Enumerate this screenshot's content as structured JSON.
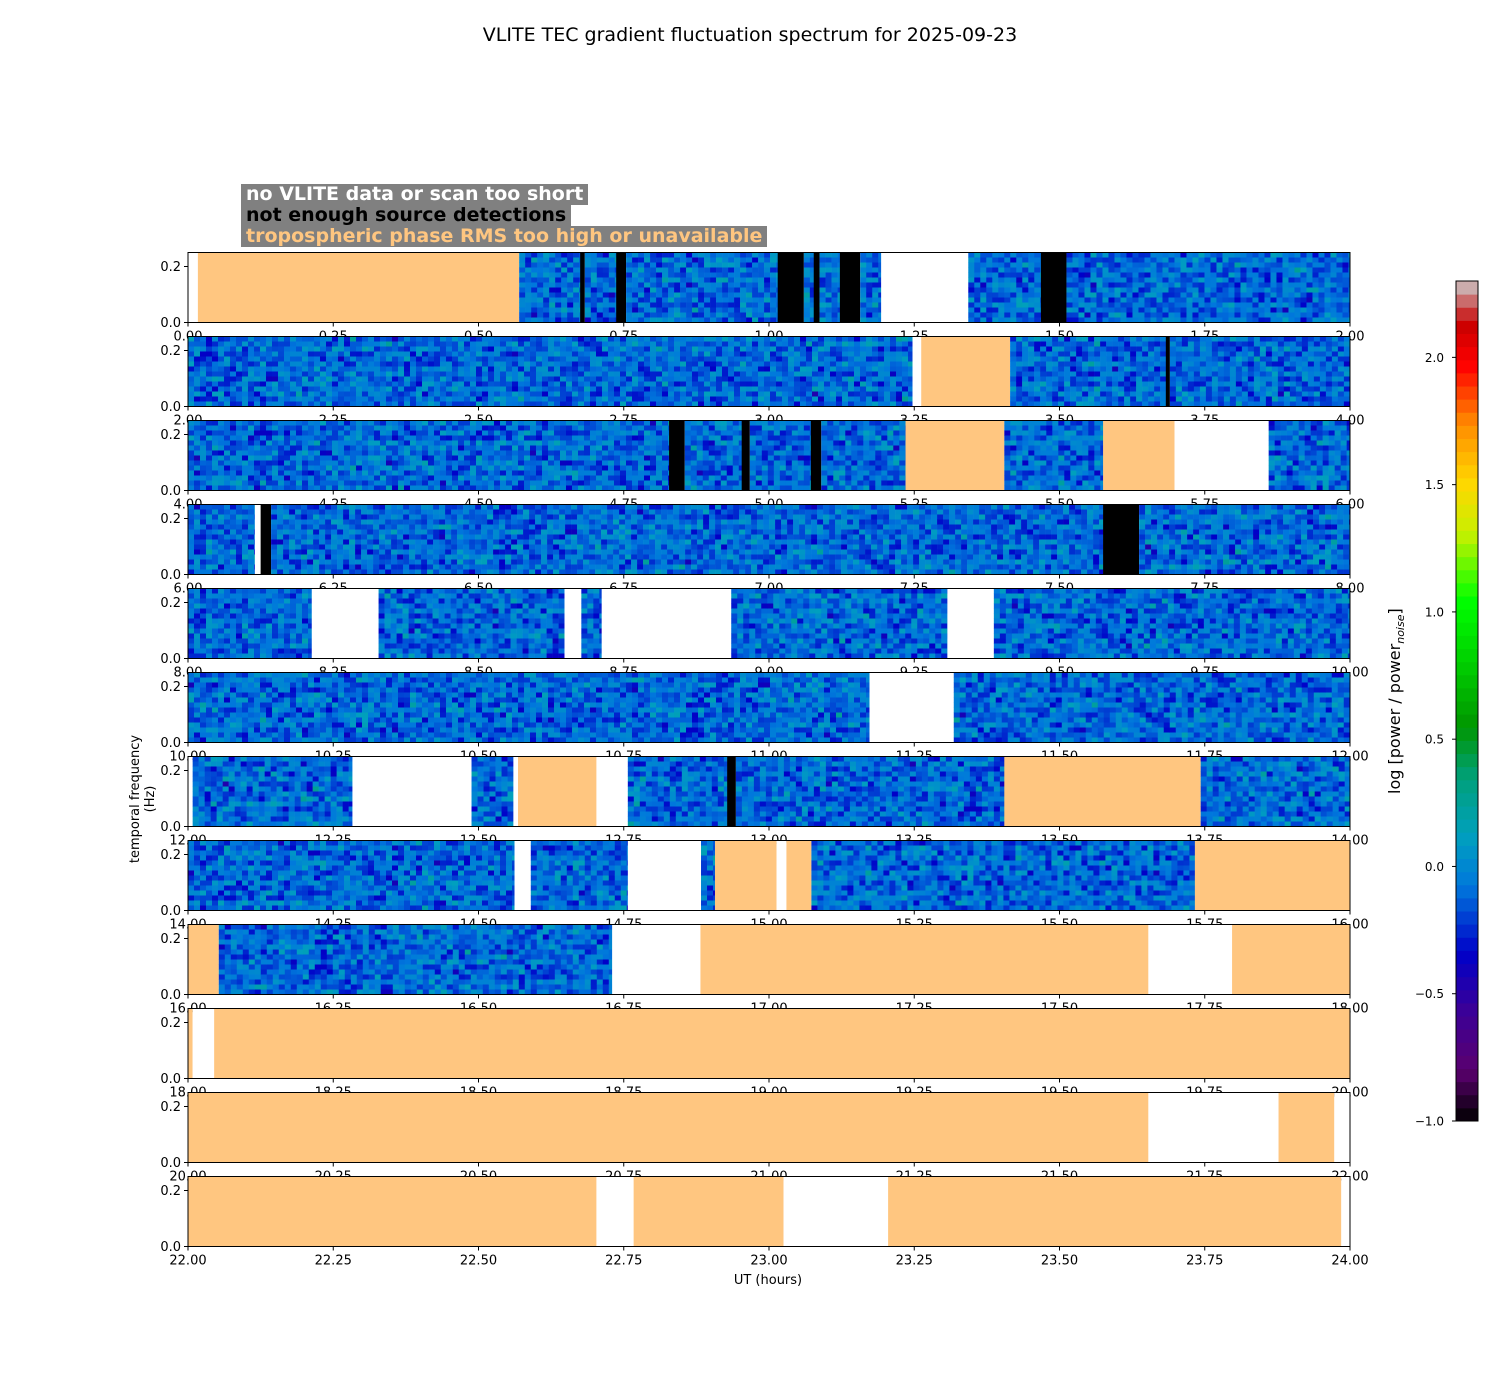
{
  "title": "VLITE TEC gradient fluctuation spectrum for 2025-09-23",
  "legend": {
    "no_data": "no VLITE data or scan too short",
    "not_enough": "not enough source detections",
    "tropo": "tropospheric phase RMS too high or unavailable"
  },
  "colors": {
    "tropo_fill": "#ffc680",
    "no_data_fill": "#ffffff",
    "not_enough_fill": "#000000",
    "legend_bg": "#808080"
  },
  "chart_data": {
    "type": "heatmap",
    "xlabel": "UT (hours)",
    "ylabel": "temporal frequency (Hz)",
    "colorbar_label": "log [power / power_noise]",
    "colorbar_ticks": [
      "−1.0",
      "−0.5",
      "0.0",
      "0.5",
      "1.0",
      "1.5",
      "2.0"
    ],
    "colorbar_range": [
      -1.0,
      2.3
    ],
    "ylim": [
      0.0,
      0.25
    ],
    "yticks": [
      "0.0",
      "0.2"
    ],
    "panels": [
      {
        "xlim": [
          0,
          2
        ],
        "xticks": [
          "0.00",
          "0.25",
          "0.50",
          "0.75",
          "1.00",
          "1.25",
          "1.50",
          "1.75",
          "2.00"
        ],
        "segments": [
          {
            "t": "n",
            "s": 0.0,
            "e": 0.017
          },
          {
            "t": "r",
            "s": 0.017,
            "e": 0.57
          },
          {
            "t": "s",
            "s": 0.57,
            "e": 0.675
          },
          {
            "t": "k",
            "s": 0.675,
            "e": 0.683
          },
          {
            "t": "s",
            "s": 0.683,
            "e": 0.737
          },
          {
            "t": "k",
            "s": 0.737,
            "e": 0.754
          },
          {
            "t": "s",
            "s": 0.754,
            "e": 1.015
          },
          {
            "t": "k",
            "s": 1.015,
            "e": 1.06
          },
          {
            "t": "s",
            "s": 1.06,
            "e": 1.077
          },
          {
            "t": "k",
            "s": 1.077,
            "e": 1.087
          },
          {
            "t": "s",
            "s": 1.087,
            "e": 1.122
          },
          {
            "t": "k",
            "s": 1.122,
            "e": 1.157
          },
          {
            "t": "s",
            "s": 1.157,
            "e": 1.193
          },
          {
            "t": "n",
            "s": 1.193,
            "e": 1.343
          },
          {
            "t": "s",
            "s": 1.343,
            "e": 1.468
          },
          {
            "t": "k",
            "s": 1.468,
            "e": 1.512
          },
          {
            "t": "s",
            "s": 1.512,
            "e": 2.0
          }
        ]
      },
      {
        "xlim": [
          2,
          4
        ],
        "xticks": [
          "2.00",
          "2.25",
          "2.50",
          "2.75",
          "3.00",
          "3.25",
          "3.50",
          "3.75",
          "4.00"
        ],
        "segments": [
          {
            "t": "s",
            "s": 2.0,
            "e": 3.247
          },
          {
            "t": "n",
            "s": 3.247,
            "e": 3.262
          },
          {
            "t": "r",
            "s": 3.262,
            "e": 3.415
          },
          {
            "t": "s",
            "s": 3.415,
            "e": 3.683
          },
          {
            "t": "k",
            "s": 3.683,
            "e": 3.69
          },
          {
            "t": "s",
            "s": 3.69,
            "e": 4.0
          }
        ]
      },
      {
        "xlim": [
          4,
          6
        ],
        "xticks": [
          "4.00",
          "4.25",
          "4.50",
          "4.75",
          "5.00",
          "5.25",
          "5.50",
          "5.75",
          "6.00"
        ],
        "segments": [
          {
            "t": "s",
            "s": 4.0,
            "e": 4.828
          },
          {
            "t": "k",
            "s": 4.828,
            "e": 4.855
          },
          {
            "t": "s",
            "s": 4.855,
            "e": 4.953
          },
          {
            "t": "k",
            "s": 4.953,
            "e": 4.967
          },
          {
            "t": "s",
            "s": 4.967,
            "e": 5.072
          },
          {
            "t": "k",
            "s": 5.072,
            "e": 5.09
          },
          {
            "t": "s",
            "s": 5.09,
            "e": 5.235
          },
          {
            "t": "r",
            "s": 5.235,
            "e": 5.405
          },
          {
            "t": "s",
            "s": 5.405,
            "e": 5.575
          },
          {
            "t": "r",
            "s": 5.575,
            "e": 5.698
          },
          {
            "t": "n",
            "s": 5.698,
            "e": 5.86
          },
          {
            "t": "s",
            "s": 5.86,
            "e": 6.0
          }
        ]
      },
      {
        "xlim": [
          6,
          8
        ],
        "xticks": [
          "6.00",
          "6.25",
          "6.50",
          "6.75",
          "7.00",
          "7.25",
          "7.50",
          "7.75",
          "8.00"
        ],
        "segments": [
          {
            "t": "s",
            "s": 6.0,
            "e": 6.115
          },
          {
            "t": "n",
            "s": 6.115,
            "e": 6.125
          },
          {
            "t": "k",
            "s": 6.125,
            "e": 6.143
          },
          {
            "t": "s",
            "s": 6.143,
            "e": 7.575
          },
          {
            "t": "k",
            "s": 7.575,
            "e": 7.637
          },
          {
            "t": "s",
            "s": 7.637,
            "e": 8.0
          }
        ]
      },
      {
        "xlim": [
          8,
          10
        ],
        "xticks": [
          "8.00",
          "8.25",
          "8.50",
          "8.75",
          "9.00",
          "9.25",
          "9.50",
          "9.75",
          "10.00"
        ],
        "segments": [
          {
            "t": "s",
            "s": 8.0,
            "e": 8.213
          },
          {
            "t": "n",
            "s": 8.213,
            "e": 8.328
          },
          {
            "t": "s",
            "s": 8.328,
            "e": 8.648
          },
          {
            "t": "n",
            "s": 8.648,
            "e": 8.677
          },
          {
            "t": "s",
            "s": 8.677,
            "e": 8.712
          },
          {
            "t": "n",
            "s": 8.712,
            "e": 8.935
          },
          {
            "t": "s",
            "s": 8.935,
            "e": 9.307
          },
          {
            "t": "n",
            "s": 9.307,
            "e": 9.387
          },
          {
            "t": "s",
            "s": 9.387,
            "e": 10.0
          }
        ]
      },
      {
        "xlim": [
          10,
          12
        ],
        "xticks": [
          "10.00",
          "10.25",
          "10.50",
          "10.75",
          "11.00",
          "11.25",
          "11.50",
          "11.75",
          "12.00"
        ],
        "segments": [
          {
            "t": "s",
            "s": 10.0,
            "e": 11.173
          },
          {
            "t": "n",
            "s": 11.173,
            "e": 11.318
          },
          {
            "t": "s",
            "s": 11.318,
            "e": 12.0
          }
        ]
      },
      {
        "xlim": [
          12,
          14
        ],
        "xticks": [
          "12.00",
          "12.25",
          "12.50",
          "12.75",
          "13.00",
          "13.25",
          "13.50",
          "13.75",
          "14.00"
        ],
        "segments": [
          {
            "t": "n",
            "s": 12.0,
            "e": 12.008
          },
          {
            "t": "s",
            "s": 12.008,
            "e": 12.283
          },
          {
            "t": "n",
            "s": 12.283,
            "e": 12.488
          },
          {
            "t": "s",
            "s": 12.488,
            "e": 12.56
          },
          {
            "t": "n",
            "s": 12.56,
            "e": 12.568
          },
          {
            "t": "r",
            "s": 12.568,
            "e": 12.703
          },
          {
            "t": "n",
            "s": 12.703,
            "e": 12.757
          },
          {
            "t": "s",
            "s": 12.757,
            "e": 12.928
          },
          {
            "t": "k",
            "s": 12.928,
            "e": 12.943
          },
          {
            "t": "s",
            "s": 12.943,
            "e": 13.405
          },
          {
            "t": "r",
            "s": 13.405,
            "e": 13.743
          },
          {
            "t": "s",
            "s": 13.743,
            "e": 14.0
          }
        ]
      },
      {
        "xlim": [
          14,
          16
        ],
        "xticks": [
          "14.00",
          "14.25",
          "14.50",
          "14.75",
          "15.00",
          "15.25",
          "15.50",
          "15.75",
          "16.00"
        ],
        "segments": [
          {
            "t": "s",
            "s": 14.0,
            "e": 14.562
          },
          {
            "t": "n",
            "s": 14.562,
            "e": 14.59
          },
          {
            "t": "s",
            "s": 14.59,
            "e": 14.757
          },
          {
            "t": "n",
            "s": 14.757,
            "e": 14.883
          },
          {
            "t": "s",
            "s": 14.883,
            "e": 14.907
          },
          {
            "t": "r",
            "s": 14.907,
            "e": 15.013
          },
          {
            "t": "n",
            "s": 15.013,
            "e": 15.03
          },
          {
            "t": "r",
            "s": 15.03,
            "e": 15.073
          },
          {
            "t": "s",
            "s": 15.073,
            "e": 15.733
          },
          {
            "t": "r",
            "s": 15.733,
            "e": 16.0
          }
        ]
      },
      {
        "xlim": [
          16,
          18
        ],
        "xticks": [
          "16.00",
          "16.25",
          "16.50",
          "16.75",
          "17.00",
          "17.25",
          "17.50",
          "17.75",
          "18.00"
        ],
        "segments": [
          {
            "t": "r",
            "s": 16.0,
            "e": 16.053
          },
          {
            "t": "s",
            "s": 16.053,
            "e": 16.73
          },
          {
            "t": "n",
            "s": 16.73,
            "e": 16.882
          },
          {
            "t": "r",
            "s": 16.882,
            "e": 17.653
          },
          {
            "t": "n",
            "s": 17.653,
            "e": 17.797
          },
          {
            "t": "r",
            "s": 17.797,
            "e": 18.0
          }
        ]
      },
      {
        "xlim": [
          18,
          20
        ],
        "xticks": [
          "18.00",
          "18.25",
          "18.50",
          "18.75",
          "19.00",
          "19.25",
          "19.50",
          "19.75",
          "20.00"
        ],
        "segments": [
          {
            "t": "r",
            "s": 18.0,
            "e": 18.008
          },
          {
            "t": "n",
            "s": 18.008,
            "e": 18.045
          },
          {
            "t": "r",
            "s": 18.045,
            "e": 20.0
          }
        ]
      },
      {
        "xlim": [
          20,
          22
        ],
        "xticks": [
          "20.00",
          "20.25",
          "20.50",
          "20.75",
          "21.00",
          "21.25",
          "21.50",
          "21.75",
          "22.00"
        ],
        "segments": [
          {
            "t": "r",
            "s": 20.0,
            "e": 21.653
          },
          {
            "t": "n",
            "s": 21.653,
            "e": 21.877
          },
          {
            "t": "r",
            "s": 21.877,
            "e": 21.973
          },
          {
            "t": "n",
            "s": 21.973,
            "e": 22.0
          }
        ]
      },
      {
        "xlim": [
          22,
          24
        ],
        "xticks": [
          "22.00",
          "22.25",
          "22.50",
          "22.75",
          "23.00",
          "23.25",
          "23.50",
          "23.75",
          "24.00"
        ],
        "segments": [
          {
            "t": "r",
            "s": 22.0,
            "e": 22.703
          },
          {
            "t": "n",
            "s": 22.703,
            "e": 22.767
          },
          {
            "t": "r",
            "s": 22.767,
            "e": 23.025
          },
          {
            "t": "n",
            "s": 23.025,
            "e": 23.205
          },
          {
            "t": "r",
            "s": 23.205,
            "e": 23.985
          },
          {
            "t": "n",
            "s": 23.985,
            "e": 24.0
          }
        ]
      }
    ]
  }
}
